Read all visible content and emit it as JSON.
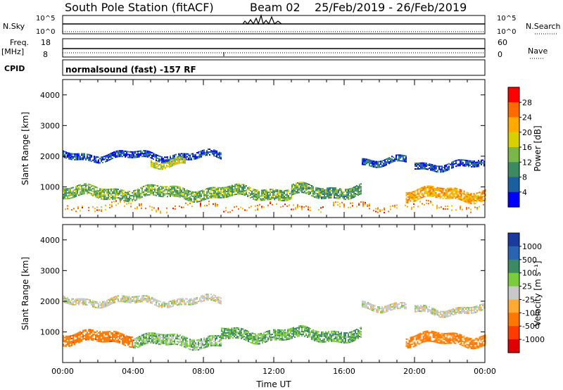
{
  "header": {
    "station": "South Pole Station (fitACF)",
    "beam": "Beam 02",
    "date_range": "25/Feb/2019 - 26/Feb/2019"
  },
  "top_panels": {
    "nsky_label": "N.Sky",
    "nsky_ticks": [
      "10^5",
      "10^0"
    ],
    "nsearch_label": "N.Search",
    "nsearch_ticks": [
      "10^5",
      "10^0"
    ],
    "freq_label": "Freq.",
    "freq_unit": "[MHz]",
    "freq_ticks": [
      "18",
      "8"
    ],
    "nave_label": "Nave",
    "nave_ticks": [
      "60",
      "0"
    ],
    "cpid_label": "CPID",
    "cpid_text": "normalsound (fast) -157 RF"
  },
  "colorbars": {
    "power": {
      "label": "Power [dB]",
      "ticks": [
        "28",
        "24",
        "20",
        "16",
        "12",
        "8",
        "4"
      ],
      "colors": [
        "#ff0000",
        "#ff6a00",
        "#ffaa00",
        "#d9d000",
        "#7ab648",
        "#3c8a62",
        "#1a5fa0",
        "#0000ff"
      ]
    },
    "velocity": {
      "label": "Velocity [m s⁻¹]",
      "ticks": [
        "1000",
        "500",
        "100",
        "25",
        "-25",
        "-100",
        "-500",
        "-1000"
      ],
      "colors": [
        "#1a3a9e",
        "#2a64b0",
        "#3c8a62",
        "#7acc3c",
        "#c8c8c8",
        "#ffaa33",
        "#ff7700",
        "#ff3b00",
        "#e00000"
      ]
    }
  },
  "chart_data": [
    {
      "type": "heatmap",
      "quantity": "power",
      "ylabel": "Slant Range [km]",
      "ylim": [
        0,
        4500
      ],
      "xlim": [
        0,
        24
      ],
      "x_ticks": [
        "00:00",
        "04:00",
        "08:00",
        "12:00",
        "16:00",
        "20:00",
        "00:00"
      ],
      "y_ticks": [
        "1000",
        "2000",
        "3000",
        "4000"
      ],
      "colorbar": "power",
      "echo_bands": [
        {
          "t_start": 0.0,
          "t_end": 9.0,
          "range_km": 2000,
          "power_db": 5
        },
        {
          "t_start": 5.0,
          "t_end": 7.0,
          "range_km": 1800,
          "power_db": 17
        },
        {
          "t_start": 17.0,
          "t_end": 19.5,
          "range_km": 1850,
          "power_db": 6
        },
        {
          "t_start": 20.0,
          "t_end": 24.0,
          "range_km": 1700,
          "power_db": 5
        },
        {
          "t_start": 0.0,
          "t_end": 13.0,
          "range_km": 800,
          "power_db": 13
        },
        {
          "t_start": 13.0,
          "t_end": 17.0,
          "range_km": 850,
          "power_db": 12
        },
        {
          "t_start": 19.5,
          "t_end": 24.0,
          "range_km": 750,
          "power_db": 22
        },
        {
          "t_start": 0.0,
          "t_end": 24.0,
          "range_km": 350,
          "power_db": 24
        }
      ]
    },
    {
      "type": "heatmap",
      "quantity": "velocity",
      "xlabel": "Time UT",
      "ylabel": "Slant Range [km]",
      "ylim": [
        0,
        4500
      ],
      "xlim": [
        0,
        24
      ],
      "x_ticks": [
        "00:00",
        "04:00",
        "08:00",
        "12:00",
        "16:00",
        "20:00",
        "00:00"
      ],
      "y_ticks": [
        "1000",
        "2000",
        "3000",
        "4000"
      ],
      "colorbar": "velocity",
      "echo_bands": [
        {
          "t_start": 0.0,
          "t_end": 9.0,
          "range_km": 2000,
          "velocity_ms": 0
        },
        {
          "t_start": 17.0,
          "t_end": 19.5,
          "range_km": 1850,
          "velocity_ms": 0
        },
        {
          "t_start": 20.0,
          "t_end": 24.0,
          "range_km": 1700,
          "velocity_ms": 0
        },
        {
          "t_start": 0.0,
          "t_end": 4.0,
          "range_km": 800,
          "velocity_ms": -300
        },
        {
          "t_start": 4.0,
          "t_end": 9.0,
          "range_km": 700,
          "velocity_ms": 60
        },
        {
          "t_start": 9.0,
          "t_end": 17.0,
          "range_km": 900,
          "velocity_ms": 100
        },
        {
          "t_start": 19.5,
          "t_end": 24.0,
          "range_km": 750,
          "velocity_ms": -200
        }
      ]
    }
  ]
}
